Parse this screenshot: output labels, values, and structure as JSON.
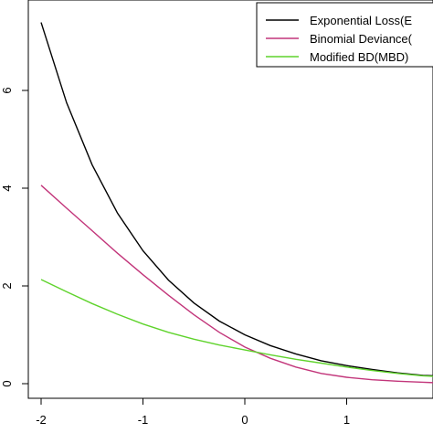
{
  "chart_data": {
    "type": "line",
    "x_ticks": [
      -2,
      -1,
      0,
      1
    ],
    "y_ticks": [
      0,
      2,
      4,
      6
    ],
    "xlim": [
      -2,
      2
    ],
    "ylim": [
      0,
      7.5
    ],
    "grid": false,
    "legend_position": "top-right",
    "legend": [
      {
        "label": "Exponential Loss(E",
        "color": "#000000"
      },
      {
        "label": "Binomial Deviance(",
        "color": "#c2357a"
      },
      {
        "label": "Modified BD(MBD)",
        "color": "#5fd32c"
      }
    ],
    "series": [
      {
        "name": "Exponential Loss(E",
        "color": "#000000",
        "x": [
          -2,
          -1.75,
          -1.5,
          -1.25,
          -1,
          -0.75,
          -0.5,
          -0.25,
          0,
          0.25,
          0.5,
          0.75,
          1,
          1.25,
          1.5,
          1.75,
          1.85
        ],
        "y": [
          7.39,
          5.75,
          4.48,
          3.49,
          2.72,
          2.12,
          1.65,
          1.28,
          1.0,
          0.78,
          0.61,
          0.47,
          0.37,
          0.29,
          0.22,
          0.17,
          0.16
        ]
      },
      {
        "name": "Binomial Deviance(",
        "color": "#c2357a",
        "x": [
          -2,
          -1.75,
          -1.5,
          -1.25,
          -1,
          -0.75,
          -0.5,
          -0.25,
          0,
          0.25,
          0.5,
          0.75,
          1,
          1.25,
          1.5,
          1.75,
          1.85
        ],
        "y": [
          4.06,
          3.59,
          3.13,
          2.67,
          2.23,
          1.81,
          1.41,
          1.05,
          0.75,
          0.52,
          0.34,
          0.21,
          0.13,
          0.08,
          0.05,
          0.03,
          0.02
        ]
      },
      {
        "name": "Modified BD(MBD)",
        "color": "#5fd32c",
        "x": [
          -2,
          -1.75,
          -1.5,
          -1.25,
          -1,
          -0.75,
          -0.5,
          -0.25,
          0,
          0.25,
          0.5,
          0.75,
          1,
          1.25,
          1.5,
          1.75,
          1.85
        ],
        "y": [
          2.13,
          1.88,
          1.64,
          1.42,
          1.22,
          1.05,
          0.91,
          0.79,
          0.69,
          0.59,
          0.5,
          0.42,
          0.34,
          0.27,
          0.21,
          0.16,
          0.15
        ]
      }
    ]
  }
}
